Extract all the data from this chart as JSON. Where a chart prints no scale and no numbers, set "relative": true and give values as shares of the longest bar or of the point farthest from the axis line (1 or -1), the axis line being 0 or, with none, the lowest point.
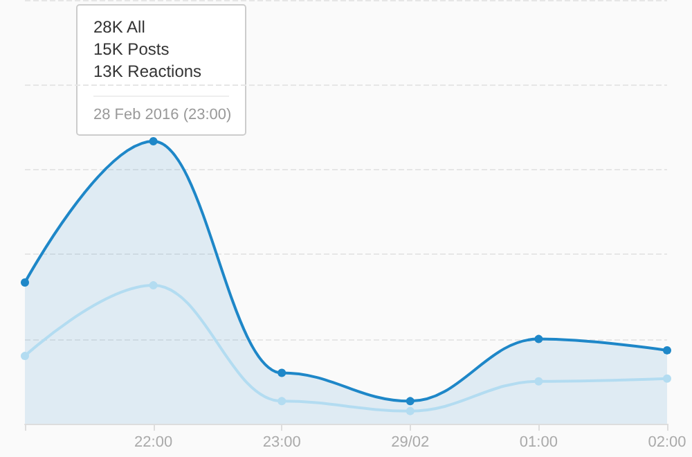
{
  "chart_data": {
    "type": "area",
    "relative": true,
    "categories": [
      null,
      "22:00",
      "23:00",
      "29/02",
      "01:00",
      "02:00"
    ],
    "series": [
      {
        "color": "#1e87c8",
        "values": [
          0.5,
          1,
          0.18,
          0.08,
          0.3,
          0.26
        ]
      },
      {
        "type": "line",
        "color": "#b3dcf1",
        "values": [
          0.24,
          0.49,
          0.08,
          0.045,
          0.15,
          0.16
        ]
      }
    ],
    "annotations": [
      "28K All",
      "15K Posts",
      "13K Reactions",
      "28 Feb 2016 (23:00)"
    ],
    "grid": "y",
    "marker": "circle"
  }
}
